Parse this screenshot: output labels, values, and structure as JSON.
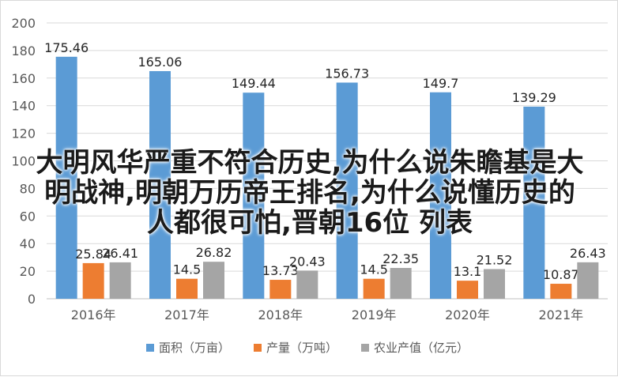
{
  "chart_data": {
    "type": "bar",
    "categories": [
      "2016年",
      "2017年",
      "2018年",
      "2019年",
      "2020年",
      "2021年"
    ],
    "series": [
      {
        "name": "面积（万亩）",
        "color": "#5b9bd5",
        "values": [
          175.46,
          165.06,
          149.44,
          156.73,
          149.7,
          139.29
        ]
      },
      {
        "name": "产量（万吨）",
        "color": "#ed7d31",
        "values": [
          25.84,
          14.5,
          13.73,
          14.5,
          13.1,
          10.87
        ]
      },
      {
        "name": "农业产值（亿元）",
        "color": "#a5a5a5",
        "values": [
          26.41,
          26.82,
          20.43,
          22.35,
          21.52,
          26.43
        ]
      }
    ],
    "y_ticks": [
      0,
      20,
      40,
      60,
      80,
      100,
      120,
      140,
      160,
      180,
      200
    ],
    "ylim": [
      0,
      200
    ],
    "grid": true,
    "legend_position": "bottom"
  },
  "overlay_text": "大明风华严重不符合历史,为什么说朱瞻基是大\n明战神,明朝万历帝王排名,为什么说懂历史的\n人都很可怕,晋朝16位 列表"
}
